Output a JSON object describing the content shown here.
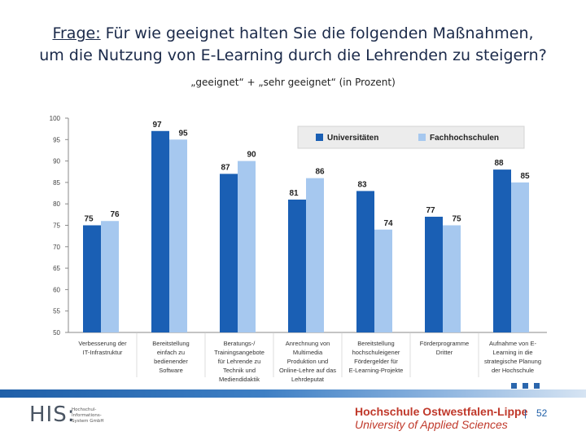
{
  "header": {
    "title_prefix": "Frage:",
    "title_line1_rest": " Für wie geeignet halten Sie die folgenden Maßnahmen,",
    "title_line2": "um die Nutzung von E-Learning durch die Lehrenden zu steigern?",
    "subtitle": "„geeignet“ + „sehr geeignet“ (in Prozent)"
  },
  "chart_data": {
    "type": "bar",
    "ylim": [
      50,
      100
    ],
    "yticks": [
      50,
      55,
      60,
      65,
      70,
      75,
      80,
      85,
      90,
      95,
      100
    ],
    "grid": false,
    "legend_position": "top-right",
    "categories": [
      [
        "Verbesserung der",
        "IT-Infrastruktur"
      ],
      [
        "Bereitstellung",
        "einfach zu",
        "bedienender",
        "Software"
      ],
      [
        "Beratungs-/",
        "Trainingsangebote",
        "für Lehrende zu",
        "Technik und",
        "Mediendidaktik"
      ],
      [
        "Anrechnung von",
        "Multimedia",
        "Produktion und",
        "Online-Lehre auf das",
        "Lehrdeputat"
      ],
      [
        "Bereitstellung",
        "hochschuleigener",
        "Fördergelder für",
        "E-Learning-Projekte"
      ],
      [
        "Förderprogramme",
        "Dritter"
      ],
      [
        "Aufnahme von E-",
        "Learning in die",
        "strategische Planung",
        "der Hochschule"
      ]
    ],
    "series": [
      {
        "name": "Universitäten",
        "color": "#1a5fb4",
        "values": [
          75,
          97,
          87,
          81,
          83,
          77,
          88
        ]
      },
      {
        "name": "Fachhochschulen",
        "color": "#a6c8ef",
        "values": [
          76,
          95,
          90,
          86,
          74,
          75,
          85
        ]
      }
    ]
  },
  "footer": {
    "his_logo": "HIS:",
    "his_sub": [
      "Hochschul-",
      "Informations-",
      "System GmbH"
    ],
    "hs_name": "Hochschule Ostwestfalen-Lippe",
    "hs_sub": "University of Applied Sciences",
    "separator": "|",
    "page_number": "52",
    "accent_color": "#1f5fa8",
    "logo_color": "#c0392b"
  }
}
